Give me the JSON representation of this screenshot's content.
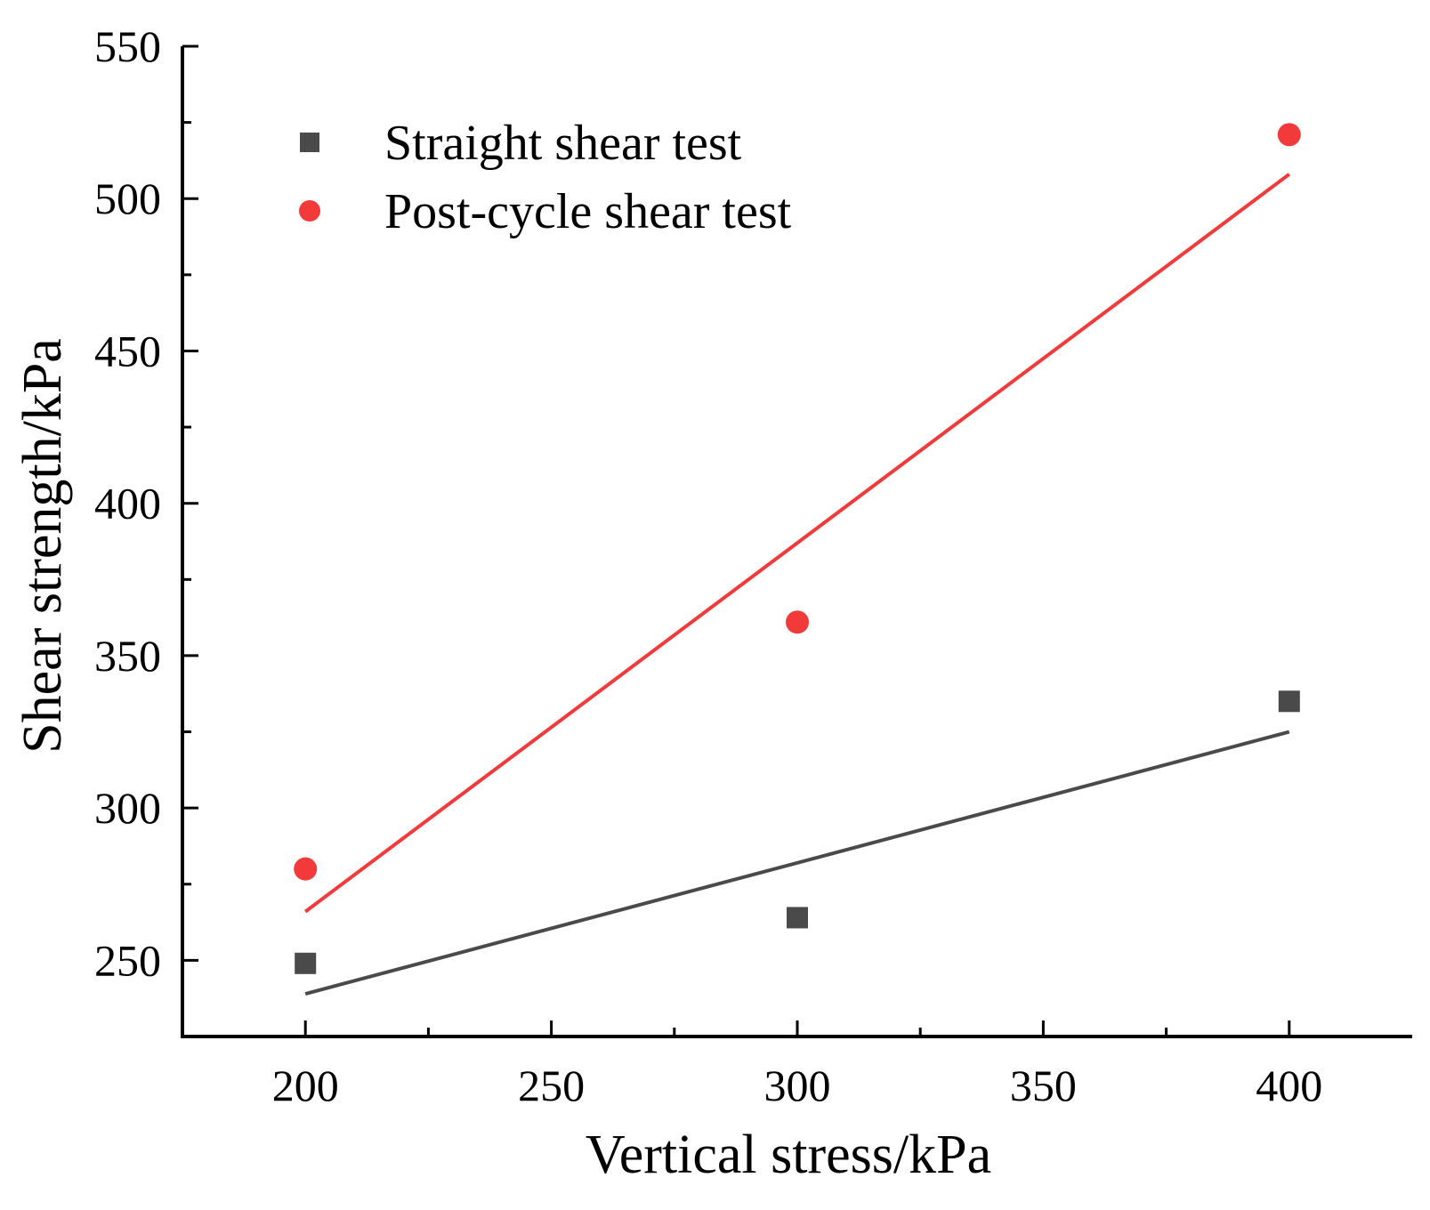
{
  "chart_data": {
    "type": "scatter",
    "title": "",
    "xlabel": "Vertical stress/kPa",
    "ylabel": "Shear strength/kPa",
    "xlim": [
      175,
      425
    ],
    "ylim": [
      225,
      550
    ],
    "x_ticks": [
      200,
      250,
      300,
      350,
      400
    ],
    "y_ticks": [
      250,
      300,
      350,
      400,
      450,
      500,
      550
    ],
    "grid": false,
    "legend_position": "top-left",
    "series": [
      {
        "name": "Straight shear test",
        "marker": "square",
        "color": "#4a4a4a",
        "x": [
          200,
          300,
          400
        ],
        "y": [
          249,
          264,
          335
        ],
        "fit_line": {
          "x": [
            200,
            400
          ],
          "y": [
            239,
            325
          ]
        }
      },
      {
        "name": "Post-cycle shear test",
        "marker": "circle",
        "color": "#f23a3a",
        "x": [
          200,
          300,
          400
        ],
        "y": [
          280,
          361,
          521
        ],
        "fit_line": {
          "x": [
            200,
            400
          ],
          "y": [
            266,
            508
          ]
        }
      }
    ]
  }
}
